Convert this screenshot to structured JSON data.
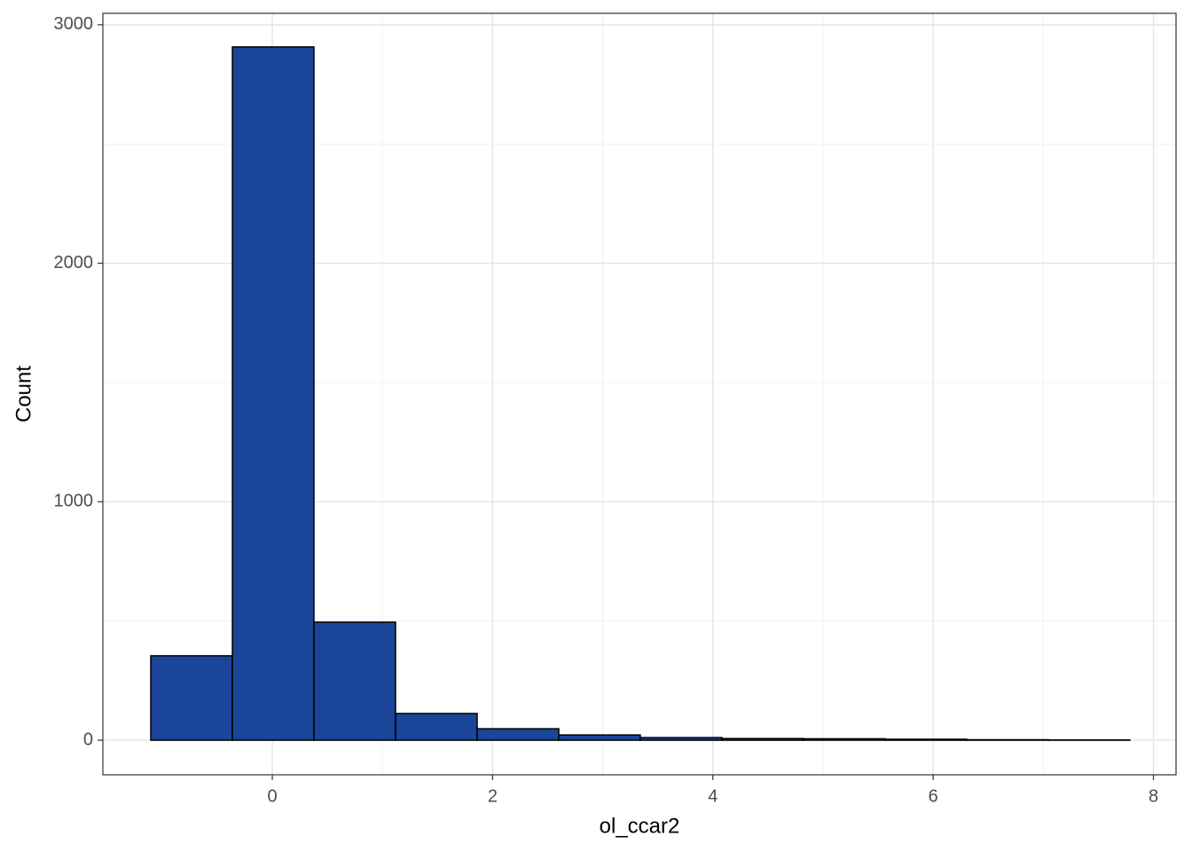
{
  "chart_data": {
    "type": "histogram",
    "xlabel": "ol_ccar2",
    "ylabel": "Count",
    "bins": [
      -1.103,
      -0.362,
      0.378,
      1.119,
      1.86,
      2.601,
      3.341,
      4.082,
      4.823,
      5.564,
      6.304,
      7.045,
      7.786
    ],
    "counts": [
      354,
      2907,
      495,
      112,
      48,
      22,
      11,
      7,
      6,
      4,
      2,
      1
    ],
    "color": "#1a4599",
    "xlim": [
      -1.538,
      8.205
    ],
    "ylim": [
      -145,
      3048
    ],
    "xticks": [
      0,
      2,
      4,
      6,
      8
    ],
    "yticks": [
      0,
      1000,
      2000,
      3000
    ],
    "grid": true
  }
}
